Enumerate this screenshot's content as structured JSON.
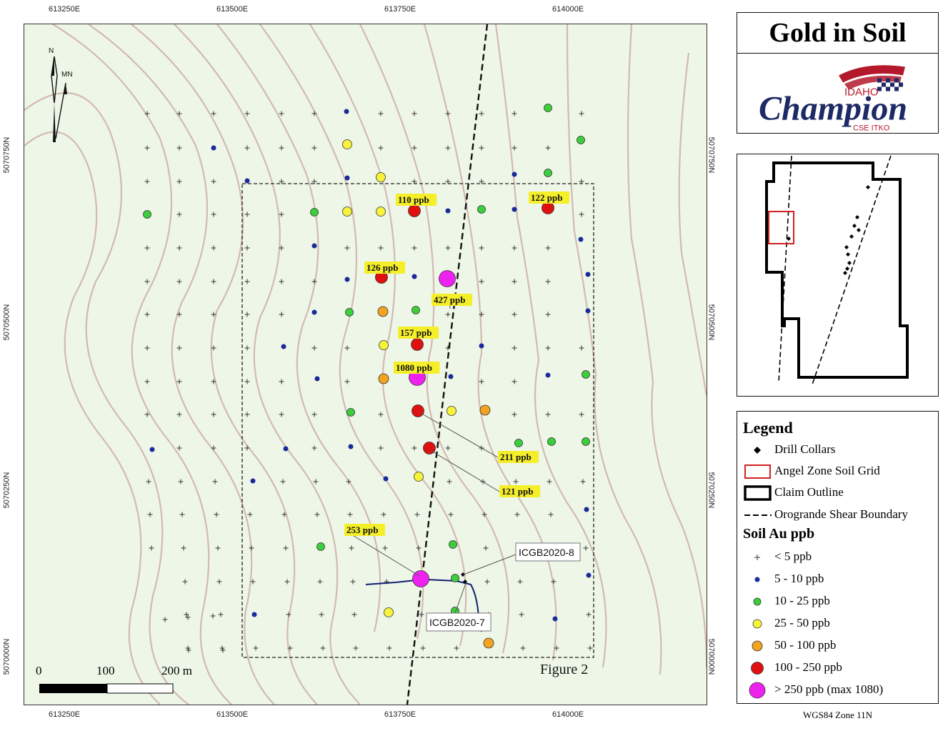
{
  "title": "Gold in Soil",
  "logo": {
    "line1": "IDAHO",
    "line2": "Champion",
    "line3": "CSE ITKO"
  },
  "coords": {
    "top": [
      "613250E",
      "613500E",
      "613750E",
      "614000E"
    ],
    "bottom": [
      "613250E",
      "613500E",
      "613750E",
      "614000E"
    ],
    "left": [
      "5070750N",
      "5070500N",
      "5070250N",
      "5070000N"
    ],
    "right": [
      "5070750N",
      "5070500N",
      "5070250N",
      "5070000N"
    ]
  },
  "north_arrow": {
    "n": "N",
    "mn": "MN"
  },
  "scale_bar": {
    "labels": [
      "0",
      "100",
      "200 m"
    ]
  },
  "figure_label": "Figure 2",
  "sample_labels": [
    "110 ppb",
    "122 ppb",
    "126 ppb",
    "427 ppb",
    "157 ppb",
    "1080 ppb",
    "211 ppb",
    "121 ppb",
    "253 ppb"
  ],
  "drill_labels": [
    "ICGB2020-8",
    "ICGB2020-7"
  ],
  "legend": {
    "title": "Legend",
    "items": [
      "Drill Collars",
      "Angel Zone Soil Grid",
      "Claim Outline",
      "Orogrande Shear Boundary"
    ],
    "soil_title": "Soil Au ppb",
    "classes": [
      "< 5 ppb",
      "5 - 10 ppb",
      "10 - 25 ppb",
      "25 - 50 ppb",
      "50 - 100 ppb",
      "100 - 250 ppb",
      "> 250 ppb (max 1080)"
    ]
  },
  "projection": "WGS84 Zone 11N",
  "colors": {
    "lt5": "#333333",
    "c5_10": "#1a2a9a",
    "c10_25": "#3ccf3c",
    "c25_50": "#f7f23a",
    "c50_100": "#f2a320",
    "c100_250": "#e01010",
    "cgt250": "#ee22ee",
    "label_bg": "#f5ef2a",
    "contour": "#c9a6a0",
    "claim": "#000000",
    "grid": "#d02020"
  }
}
